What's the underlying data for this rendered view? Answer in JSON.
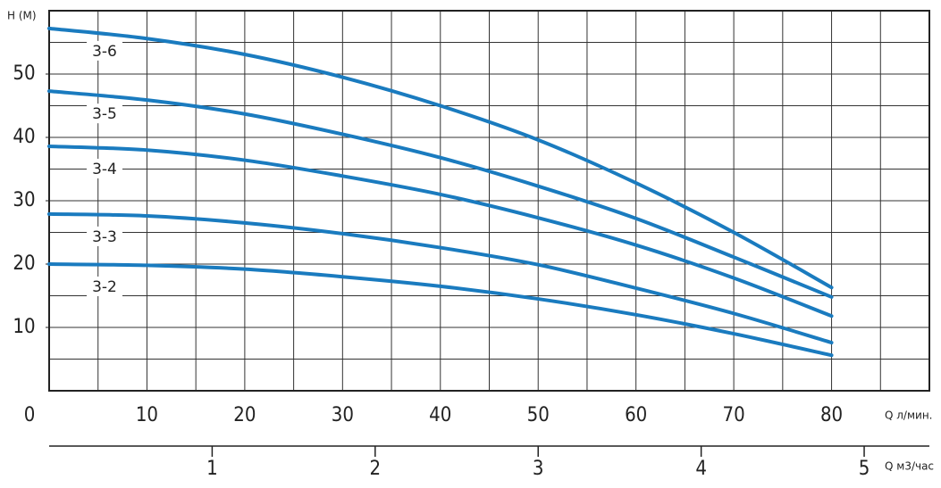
{
  "chart_data": {
    "type": "line",
    "y_label": "H (M)",
    "x_label": "Q л/мин.",
    "x2_label": "Q м3/час",
    "x": [
      0,
      10,
      20,
      30,
      40,
      50,
      60,
      70,
      80
    ],
    "series": [
      {
        "name": "3-6",
        "color": "#1a7bbf",
        "values": [
          57.2,
          55.6,
          53.1,
          49.5,
          45,
          39.6,
          32.8,
          25,
          16.3
        ]
      },
      {
        "name": "3-5",
        "color": "#1a7bbf",
        "values": [
          47.3,
          45.9,
          43.7,
          40.5,
          36.8,
          32.3,
          27.2,
          21.1,
          14.8
        ]
      },
      {
        "name": "3-4",
        "color": "#1a7bbf",
        "values": [
          38.6,
          38,
          36.4,
          33.9,
          31,
          27.3,
          23,
          17.8,
          11.8
        ]
      },
      {
        "name": "3-3",
        "color": "#1a7bbf",
        "values": [
          27.9,
          27.6,
          26.5,
          24.8,
          22.6,
          19.9,
          16.2,
          12.2,
          7.6
        ]
      },
      {
        "name": "3-2",
        "color": "#1a7bbf",
        "values": [
          20,
          19.8,
          19.2,
          18,
          16.5,
          14.5,
          12,
          9,
          5.6
        ]
      }
    ],
    "xlim": [
      0,
      90
    ],
    "ylim": [
      0,
      60
    ],
    "xticks": [
      0,
      10,
      20,
      30,
      40,
      50,
      60,
      70,
      80
    ],
    "yticks": [
      10,
      20,
      30,
      40,
      50
    ],
    "x2lim": [
      0,
      5.4
    ],
    "x2ticks": [
      1,
      2,
      3,
      4,
      5
    ],
    "grid": true,
    "grid_step_x": 5,
    "grid_step_y": 5
  }
}
